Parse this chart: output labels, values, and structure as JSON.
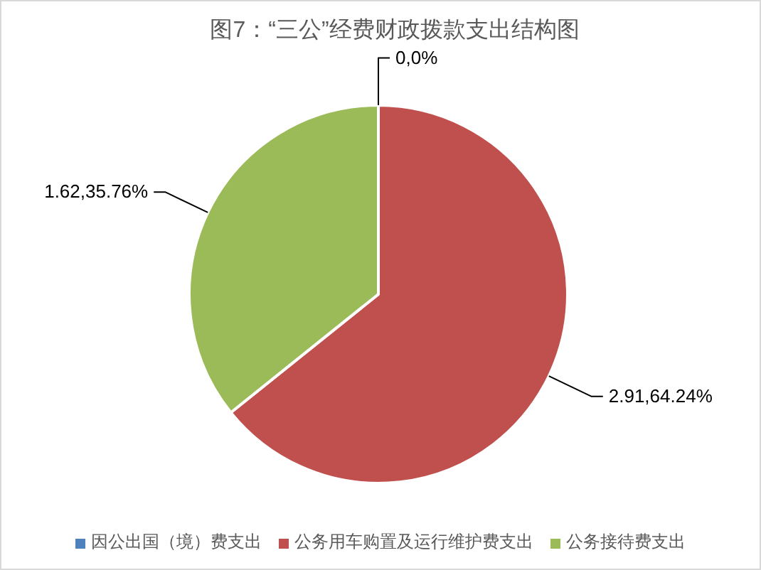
{
  "chart_data": {
    "type": "pie",
    "title": "图7：“三公”经费财政拨款支出结构图",
    "categories": [
      "因公出国（境）费支出",
      "公务用车购置及运行维护费支出",
      "公务接待费支出"
    ],
    "values": [
      0,
      64.24,
      35.76
    ],
    "colors": [
      "#4f81bd",
      "#c0504d",
      "#9bbb59"
    ],
    "value_labels": [
      "0,0%",
      "2.91,64.24%",
      "1.62,35.76%"
    ],
    "legend": "bottom"
  }
}
